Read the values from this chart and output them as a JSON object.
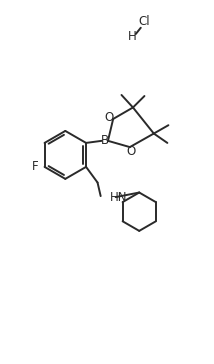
{
  "background_color": "#ffffff",
  "line_color": "#2a2a2a",
  "line_width": 1.4,
  "font_size": 8.5,
  "figsize": [
    2.14,
    3.64
  ],
  "dpi": 100,
  "xlim": [
    0,
    10
  ],
  "ylim": [
    0,
    17
  ]
}
